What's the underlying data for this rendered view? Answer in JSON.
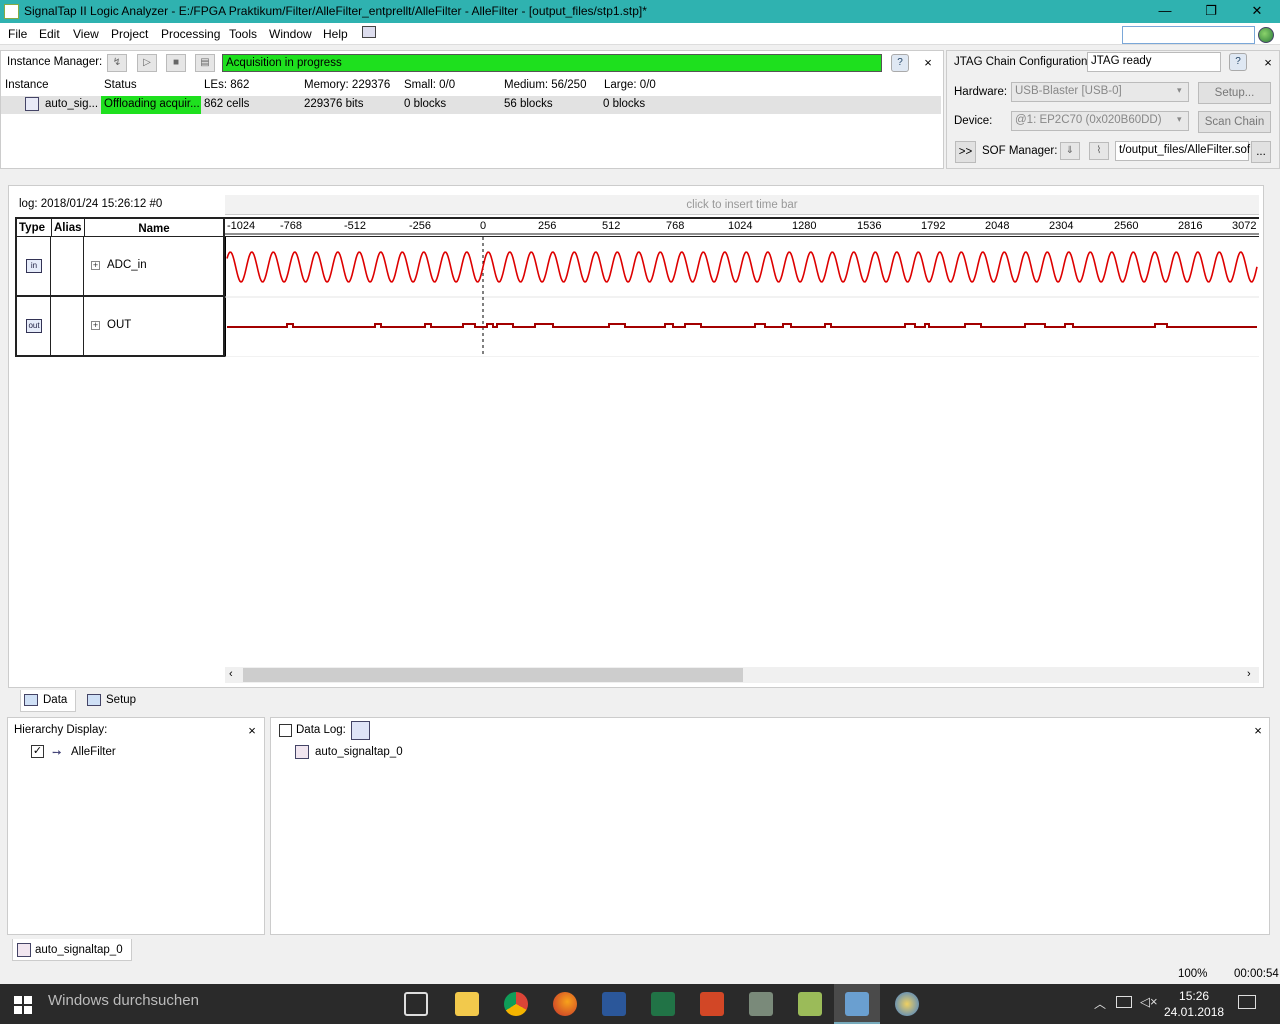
{
  "window": {
    "title": "SignalTap II Logic Analyzer - E:/FPGA Praktikum/Filter/AlleFilter_entprellt/AlleFilter - AlleFilter - [output_files/stp1.stp]*",
    "minimize": "—",
    "maximize": "❐",
    "close": "✕"
  },
  "menu": {
    "items": [
      "File",
      "Edit",
      "View",
      "Project",
      "Processing",
      "Tools",
      "Window",
      "Help"
    ],
    "search_value": ""
  },
  "instance_manager": {
    "label": "Instance Manager:",
    "status_text": "Acquisition in progress",
    "columns": [
      "Instance",
      "Status",
      "LEs: 862",
      "Memory: 229376",
      "Small: 0/0",
      "Medium: 56/250",
      "Large: 0/0"
    ],
    "row": {
      "instance": "auto_sig...",
      "status": "Offloading acquir...",
      "les": "862 cells",
      "memory": "229376 bits",
      "small": "0 blocks",
      "medium": "56 blocks",
      "large": "0 blocks"
    },
    "help": "?",
    "close": "×"
  },
  "jtag": {
    "label": "JTAG Chain Configuration:",
    "status": "JTAG ready",
    "hardware_label": "Hardware:",
    "hardware_value": "USB-Blaster [USB-0]",
    "setup_button": "Setup...",
    "device_label": "Device:",
    "device_value": "@1: EP2C70 (0x020B60DD)",
    "scan_button": "Scan Chain",
    "expand_button": ">>",
    "sof_label": "SOF Manager:",
    "sof_value": "t/output_files/AlleFilter.sof",
    "browse_button": "...",
    "help": "?",
    "close": "×"
  },
  "waveform": {
    "log_label": "log: 2018/01/24 15:26:12  #0",
    "timebar_hint": "click to insert time bar",
    "columns": {
      "type": "Type",
      "alias": "Alias",
      "name": "Name"
    },
    "ruler_ticks": [
      "-1024",
      "-768",
      "-512",
      "-256",
      "0",
      "256",
      "512",
      "768",
      "1024",
      "1280",
      "1536",
      "1792",
      "2048",
      "2304",
      "2560",
      "2816",
      "3072"
    ],
    "signals": [
      {
        "name": "ADC_in",
        "type_icon": "in",
        "expand": "+"
      },
      {
        "name": "OUT",
        "type_icon": "out",
        "expand": "+"
      }
    ],
    "signal_color": "#dd0000"
  },
  "tabs": {
    "data": "Data",
    "setup": "Setup"
  },
  "hierarchy": {
    "label": "Hierarchy Display:",
    "close": "×",
    "items": [
      {
        "label": "AlleFilter",
        "checked": true
      }
    ]
  },
  "datalog": {
    "label": "Data Log:",
    "close": "×",
    "items": [
      {
        "label": "auto_signaltap_0"
      }
    ]
  },
  "bottom_tab": "auto_signaltap_0",
  "status": {
    "zoom": "100%",
    "elapsed": "00:00:54"
  },
  "taskbar": {
    "search_placeholder": "Windows durchsuchen",
    "time": "15:26",
    "date": "24.01.2018"
  }
}
